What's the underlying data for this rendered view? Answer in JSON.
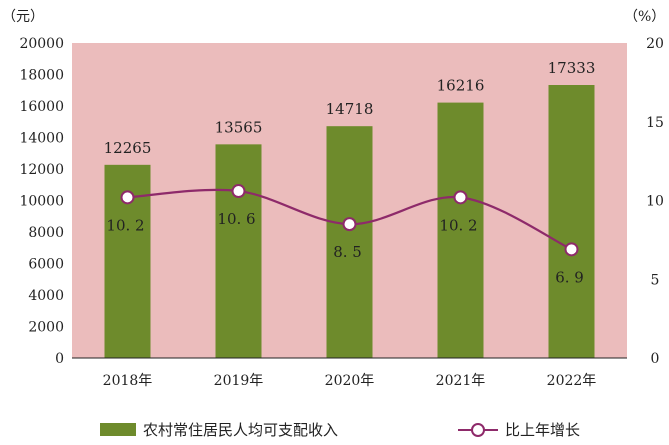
{
  "chart_data": {
    "type": "bar",
    "categories": [
      "2018年",
      "2019年",
      "2020年",
      "2021年",
      "2022年"
    ],
    "series": [
      {
        "name": "农村常住居民人均可支配收入",
        "type": "bar",
        "axis": "left",
        "color": "#6e8b2c",
        "values": [
          12265,
          13565,
          14718,
          16216,
          17333
        ]
      },
      {
        "name": "比上年增长",
        "type": "line",
        "axis": "right",
        "color": "#8e2a6a",
        "values": [
          10.2,
          10.6,
          8.5,
          10.2,
          6.9
        ]
      }
    ],
    "y_left": {
      "unit": "（元）",
      "range": [
        0,
        20000
      ],
      "ticks": [
        "0",
        "2000",
        "4000",
        "6000",
        "8000",
        "10000",
        "12000",
        "14000",
        "16000",
        "18000",
        "20000"
      ]
    },
    "y_right": {
      "unit": "（%）",
      "range": [
        0,
        20
      ],
      "ticks": [
        "0",
        "5",
        "10",
        "15",
        "20"
      ]
    },
    "bar_labels": [
      "12265",
      "13565",
      "14718",
      "16216",
      "17333"
    ],
    "line_labels": [
      "10. 2",
      "10. 6",
      "8. 5",
      "10. 2",
      "6. 9"
    ],
    "grid": false,
    "plot_background": "#ebbcbc",
    "legend_position": "bottom"
  }
}
